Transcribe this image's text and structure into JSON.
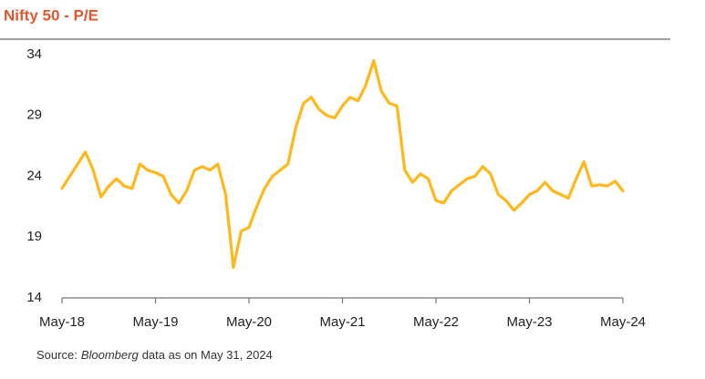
{
  "chart_data": {
    "type": "line",
    "title": "Nifty 50 - P/E",
    "categories": [
      "May-18",
      null,
      null,
      null,
      null,
      null,
      null,
      null,
      null,
      null,
      null,
      null,
      "May-19",
      null,
      null,
      null,
      null,
      null,
      null,
      null,
      null,
      null,
      null,
      null,
      "May-20",
      null,
      null,
      null,
      null,
      null,
      null,
      null,
      null,
      null,
      null,
      null,
      "May-21",
      null,
      null,
      null,
      null,
      null,
      null,
      null,
      null,
      null,
      null,
      null,
      "May-22",
      null,
      null,
      null,
      null,
      null,
      null,
      null,
      null,
      null,
      null,
      null,
      "May-23",
      null,
      null,
      null,
      null,
      null,
      null,
      null,
      null,
      null,
      null,
      null,
      "May-24"
    ],
    "series": [
      {
        "name": "Nifty 50 P/E",
        "color": "#ffb81c",
        "values": [
          23.0,
          24.0,
          25.0,
          26.0,
          24.5,
          22.3,
          23.2,
          23.8,
          23.2,
          23.0,
          25.0,
          24.5,
          24.3,
          24.0,
          22.5,
          21.8,
          22.8,
          24.5,
          24.8,
          24.5,
          25.0,
          22.5,
          16.5,
          19.5,
          19.8,
          21.5,
          23.0,
          24.0,
          24.5,
          25.0,
          28.0,
          30.0,
          30.5,
          29.5,
          29.0,
          28.8,
          29.8,
          30.5,
          30.2,
          31.5,
          33.5,
          31.0,
          30.0,
          29.8,
          24.5,
          23.5,
          24.2,
          23.8,
          22.0,
          21.8,
          22.8,
          23.3,
          23.8,
          24.0,
          24.8,
          24.2,
          22.5,
          22.0,
          21.2,
          21.8,
          22.5,
          22.8,
          23.5,
          22.8,
          22.5,
          22.2,
          23.8,
          25.2,
          23.2,
          23.3,
          23.2,
          23.6,
          22.8
        ]
      }
    ],
    "ylim": [
      14,
      34
    ],
    "yticks": [
      14,
      19,
      24,
      29,
      34
    ],
    "grid": false,
    "source": [
      "Source:",
      "Bloomberg",
      "data as on May 31, 2024"
    ]
  }
}
